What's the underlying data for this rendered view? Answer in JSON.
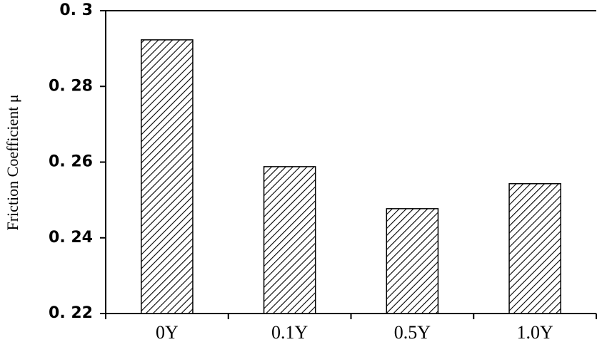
{
  "chart_data": {
    "type": "bar",
    "ylabel": "Friction Coefficient μ",
    "categories": [
      "0Y",
      "0.1Y",
      "0.5Y",
      "1.0Y"
    ],
    "values": [
      0.2923,
      0.2588,
      0.2477,
      0.2543
    ],
    "color": "#000000",
    "hatch": true,
    "ylim": [
      0.22,
      0.3
    ],
    "yticks": [
      {
        "value": 0.22,
        "label": "0. 22"
      },
      {
        "value": 0.24,
        "label": "0. 24"
      },
      {
        "value": 0.26,
        "label": "0. 26"
      },
      {
        "value": 0.28,
        "label": "0. 28"
      },
      {
        "value": 0.3,
        "label": "0. 3"
      }
    ],
    "grid": false
  }
}
